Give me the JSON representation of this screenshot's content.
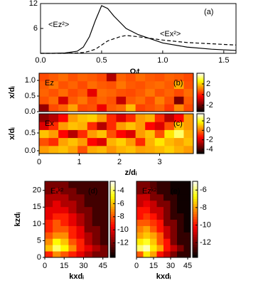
{
  "chart_data": [
    {
      "type": "line",
      "panel_label": "(a)",
      "xlabel": "Ωᵢt",
      "xlim": [
        0,
        1.6
      ],
      "ylim": [
        0,
        12
      ],
      "xticks": [
        {
          "value": 0,
          "label": "0.0"
        },
        {
          "value": 0.5,
          "label": "0.5"
        },
        {
          "value": 1,
          "label": "1.0"
        },
        {
          "value": 1.5,
          "label": "1.5"
        }
      ],
      "yticks": [
        6,
        12
      ],
      "x": [
        0,
        0.1,
        0.2,
        0.3,
        0.35,
        0.4,
        0.45,
        0.5,
        0.55,
        0.6,
        0.65,
        0.7,
        0.8,
        0.9,
        1.0,
        1.2,
        1.4,
        1.6
      ],
      "series": [
        {
          "name": "<Ez²>",
          "color": "#000000",
          "linestyle": "solid",
          "values": [
            0,
            0,
            0.1,
            0.5,
            1.5,
            4,
            8,
            11.5,
            10.8,
            9,
            7.5,
            6,
            4.5,
            3.5,
            2.5,
            1.5,
            1.0,
            0.7
          ]
        },
        {
          "name": "<Ex²>",
          "color": "#000000",
          "linestyle": "dashed",
          "values": [
            0,
            0,
            0,
            0.1,
            0.2,
            0.5,
            1,
            2,
            3,
            3.5,
            4,
            4.3,
            4,
            3.6,
            3.2,
            2.6,
            2.3,
            2.0
          ]
        }
      ]
    },
    {
      "type": "heatmap",
      "label": "Ez",
      "panel_label": "(b)",
      "ylabel": "x/dᵢ",
      "colormap": "hot",
      "xlim": [
        0,
        3.84
      ],
      "ylim": [
        0,
        1.23
      ],
      "clim": [
        -3.2,
        4
      ],
      "yticks": [
        {
          "value": 0,
          "label": "0.0"
        },
        {
          "value": 0.5,
          "label": "0.5"
        },
        {
          "value": 1,
          "label": "1.0"
        }
      ],
      "cticks": [
        2,
        0,
        -2
      ],
      "z": [
        [
          -1.5,
          0.5,
          0.8,
          1.5,
          0.5,
          0.6,
          -0.5,
          0.7,
          0.9,
          1.8,
          0.4,
          0.6,
          0.8,
          0.3,
          1.2,
          0.5
        ],
        [
          0.6,
          0.9,
          -0.8,
          0.7,
          1.0,
          0.5,
          0.8,
          0.6,
          -1.0,
          0.7,
          0.9,
          0.5,
          1.1,
          0.6,
          -1.8,
          0.7
        ],
        [
          0.8,
          0.6,
          0.9,
          0.5,
          0.7,
          -0.6,
          0.9,
          0.8,
          0.6,
          0.5,
          0.7,
          1.0,
          0.6,
          0.8,
          0.5,
          0.9
        ],
        [
          0.7,
          1.0,
          0.6,
          0.8,
          0.5,
          0.9,
          0.7,
          0.6,
          1.0,
          0.7,
          0.6,
          0.8,
          0.9,
          0.7,
          1.6,
          0.6
        ],
        [
          0.5,
          0.7,
          0.9,
          0.6,
          0.8,
          0.7,
          0.5,
          -1.2,
          0.8,
          0.6,
          0.9,
          0.7,
          0.6,
          0.8,
          0.7,
          0.5
        ]
      ]
    },
    {
      "type": "heatmap",
      "label": "Ex",
      "panel_label": "(c)",
      "ylabel": "x/dᵢ",
      "xlabel": "z/dᵢ",
      "colormap": "hot",
      "xlim": [
        0,
        3.84
      ],
      "ylim": [
        -0.08,
        1.04
      ],
      "clim": [
        -4.9,
        3.5
      ],
      "xticks": [
        0,
        1,
        2,
        3
      ],
      "yticks": [
        {
          "value": 0,
          "label": "0.0"
        },
        {
          "value": 0.5,
          "label": "0.5"
        }
      ],
      "cticks": [
        2,
        0,
        -2,
        -4
      ],
      "z": [
        [
          0.5,
          0.8,
          1.0,
          0.6,
          -0.5,
          0.7,
          0.9,
          0.4,
          0.8,
          1.0,
          0.6,
          0.7,
          0.9,
          1.2,
          0.8,
          0.5
        ],
        [
          -0.5,
          -1.0,
          0.6,
          1.0,
          0.5,
          -1.5,
          -2.0,
          0.8,
          1.2,
          0.5,
          -1.0,
          0.8,
          1.5,
          0.9,
          0.6,
          1.0
        ],
        [
          1.0,
          0.5,
          -1.5,
          -2.5,
          -1.0,
          0.5,
          1.0,
          -0.5,
          -1.5,
          -2.0,
          0.5,
          1.0,
          -0.5,
          1.5,
          2.5,
          0.8
        ],
        [
          -2.0,
          -1.0,
          0.5,
          1.0,
          0.8,
          -1.0,
          -2.5,
          -1.0,
          0.5,
          1.0,
          0.5,
          -1.5,
          -2.0,
          -0.5,
          1.0,
          0.5
        ],
        [
          -3.0,
          -2.5,
          -1.5,
          0.5,
          1.0,
          1.2,
          0.5,
          -1.0,
          -2.0,
          -1.0,
          0.5,
          0.8,
          -1.0,
          -2.5,
          -1.5,
          0.5
        ]
      ]
    },
    {
      "type": "heatmap",
      "label": "Eₓᵏ²",
      "panel_label": "(d)",
      "ylabel": "kzdᵢ",
      "xlabel": "kxdᵢ",
      "colormap": "hot",
      "xlim": [
        0,
        49
      ],
      "ylim": [
        0,
        22.7
      ],
      "clim": [
        -14.2,
        -2.6
      ],
      "xticks": [
        0,
        15,
        30,
        45
      ],
      "yticks": [
        0,
        5,
        10,
        15,
        20
      ],
      "cticks": [
        -4,
        -6,
        -8,
        -10,
        -12
      ],
      "z": [
        [
          -9,
          -7,
          -8,
          -9,
          -10,
          -11,
          -12,
          -12
        ],
        [
          -6,
          -4,
          -5,
          -7,
          -9,
          -10,
          -11,
          -12
        ],
        [
          -7,
          -5,
          -6,
          -8,
          -9,
          -11,
          -12,
          -13
        ],
        [
          -8,
          -7,
          -7,
          -9,
          -10,
          -11,
          -12,
          -13
        ],
        [
          -9,
          -8,
          -8,
          -9,
          -10,
          -12,
          -12,
          -13
        ],
        [
          -9,
          -8,
          -9,
          -10,
          -11,
          -12,
          -13,
          -13
        ],
        [
          -10,
          -9,
          -9,
          -10,
          -11,
          -12,
          -13,
          -13
        ],
        [
          -10,
          -10,
          -10,
          -11,
          -12,
          -12,
          -13,
          -13
        ],
        [
          -11,
          -10,
          -11,
          -11,
          -12,
          -13,
          -13,
          -13
        ],
        [
          -11,
          -11,
          -11,
          -12,
          -12,
          -13,
          -13,
          -13
        ],
        [
          -12,
          -11,
          -12,
          -12,
          -13,
          -13,
          -13,
          -13
        ],
        [
          -12,
          -12,
          -12,
          -13,
          -13,
          -13,
          -13,
          -13
        ]
      ]
    },
    {
      "type": "heatmap",
      "label": "Ezᵏ²",
      "panel_label": "(e)",
      "xlabel": "kxdᵢ",
      "colormap": "hot",
      "xlim": [
        0,
        47.5
      ],
      "ylim": [
        0,
        22.7
      ],
      "clim": [
        -13.7,
        -5
      ],
      "xticks": [
        0,
        15,
        30,
        45
      ],
      "cticks": [
        -6,
        -8,
        -10,
        -12
      ],
      "z": [
        [
          -9,
          -7,
          -8,
          -10,
          -11,
          -12,
          -13,
          -13
        ],
        [
          -6,
          -5.5,
          -7,
          -8,
          -10,
          -11,
          -12,
          -13
        ],
        [
          -7,
          -6.5,
          -7.5,
          -9,
          -10,
          -12,
          -13,
          -13
        ],
        [
          -8,
          -7.5,
          -8,
          -9,
          -11,
          -12,
          -13,
          -13
        ],
        [
          -8.5,
          -8,
          -9,
          -10,
          -11,
          -12,
          -13,
          -13.5
        ],
        [
          -9,
          -9,
          -9.5,
          -10,
          -12,
          -12,
          -13,
          -13.5
        ],
        [
          -10,
          -9.5,
          -10,
          -11,
          -12,
          -13,
          -13,
          -13.5
        ],
        [
          -10,
          -10,
          -11,
          -11,
          -12,
          -13,
          -13.5,
          -13.5
        ],
        [
          -11,
          -10.5,
          -11,
          -12,
          -12,
          -13,
          -13.5,
          -13.5
        ],
        [
          -11,
          -11,
          -12,
          -12,
          -13,
          -13,
          -13.5,
          -13.5
        ],
        [
          -12,
          -11.5,
          -12,
          -13,
          -13,
          -13.5,
          -13.5,
          -13.5
        ],
        [
          -12,
          -12,
          -12.5,
          -13,
          -13,
          -13.5,
          -13.5,
          -13.5
        ]
      ]
    }
  ]
}
